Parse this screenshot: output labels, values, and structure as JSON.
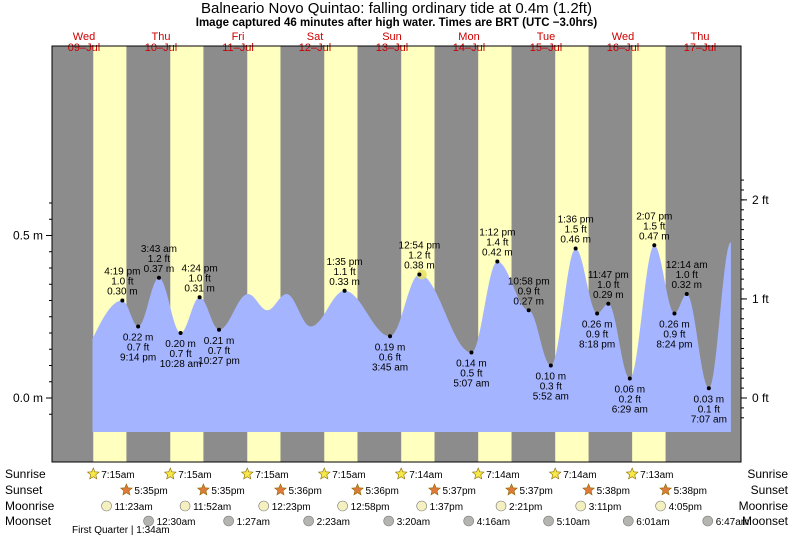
{
  "title": "Balneario Novo Quintao: falling  ordinary tide at 0.4m (1.2ft)",
  "subtitle": "Image captured 46 minutes after high water. Times are BRT (UTC −3.0hrs)",
  "colors": {
    "night": "#8c8c8c",
    "day": "#ffffc0",
    "tide_fill": "#a4b4ff",
    "grid": "#000000",
    "date_header": "#cc0000",
    "sun_icon": "#f7e84a",
    "sunset_icon": "#e07a3a",
    "moonrise_icon": "#f5f0c0",
    "moonset_icon": "#b4b4b0"
  },
  "days": [
    {
      "dow": "Wed",
      "date": "09–Jul"
    },
    {
      "dow": "Thu",
      "date": "10–Jul"
    },
    {
      "dow": "Fri",
      "date": "11–Jul"
    },
    {
      "dow": "Sat",
      "date": "12–Jul"
    },
    {
      "dow": "Sun",
      "date": "13–Jul"
    },
    {
      "dow": "Mon",
      "date": "14–Jul"
    },
    {
      "dow": "Tue",
      "date": "15–Jul"
    },
    {
      "dow": "Wed",
      "date": "16–Jul"
    },
    {
      "dow": "Thu",
      "date": "17–Jul"
    }
  ],
  "chart_data": {
    "type": "area",
    "y_axis_left": {
      "unit": "m",
      "ticks": [
        {
          "value": 0.0,
          "label": "0.0 m"
        },
        {
          "value": 0.5,
          "label": "0.5 m"
        }
      ]
    },
    "y_axis_right": {
      "unit": "ft",
      "ticks": [
        {
          "value": 0,
          "label": "0 ft"
        },
        {
          "value": 1,
          "label": "1 ft"
        },
        {
          "value": 2,
          "label": "2 ft"
        }
      ]
    },
    "ylim_m": [
      -0.08,
      0.63
    ],
    "x_range_hours_from_wed_09_jul_midnight": [
      -9,
      209
    ],
    "extremes": [
      {
        "time": "4:19 pm",
        "ft": "1.0 ft",
        "m": "0.30 m",
        "type": "high",
        "day": 0,
        "hours": 16.32,
        "value": 0.3
      },
      {
        "time": "9:14 pm",
        "ft": "0.7 ft",
        "m": "0.22 m",
        "type": "low",
        "day": 0,
        "hours": 21.23,
        "value": 0.22
      },
      {
        "time": "3:43 am",
        "ft": "1.2 ft",
        "m": "0.37 m",
        "type": "high",
        "day": 1,
        "hours": 27.72,
        "value": 0.37
      },
      {
        "time": "10:28 am",
        "ft": "0.7 ft",
        "m": "0.20 m",
        "type": "low",
        "day": 1,
        "hours": 34.47,
        "value": 0.2
      },
      {
        "time": "4:24 pm",
        "ft": "1.0 ft",
        "m": "0.31 m",
        "type": "high",
        "day": 1,
        "hours": 40.4,
        "value": 0.31
      },
      {
        "time": "10:27 pm",
        "ft": "0.7 ft",
        "m": "0.21 m",
        "type": "low",
        "day": 1,
        "hours": 46.45,
        "value": 0.21
      },
      {
        "time": "1:35 pm",
        "ft": "1.1 ft",
        "m": "0.33 m",
        "type": "high",
        "day": 3,
        "hours": 85.58,
        "value": 0.33
      },
      {
        "time": "3:45 am",
        "ft": "0.6 ft",
        "m": "0.19 m",
        "type": "low",
        "day": 4,
        "hours": 99.75,
        "value": 0.19
      },
      {
        "time": "12:54 pm",
        "ft": "1.2 ft",
        "m": "0.38 m",
        "type": "high",
        "day": 4,
        "hours": 108.9,
        "value": 0.38
      },
      {
        "time": "5:07 am",
        "ft": "0.5 ft",
        "m": "0.14 m",
        "type": "low",
        "day": 5,
        "hours": 125.12,
        "value": 0.14
      },
      {
        "time": "1:12 pm",
        "ft": "1.4 ft",
        "m": "0.42 m",
        "type": "high",
        "day": 5,
        "hours": 133.2,
        "value": 0.42
      },
      {
        "time": "10:58 pm",
        "ft": "0.9 ft",
        "m": "0.27 m",
        "type": "high",
        "day": 5,
        "hours": 142.97,
        "value": 0.27
      },
      {
        "time": "5:52 am",
        "ft": "0.3 ft",
        "m": "0.10 m",
        "type": "low",
        "day": 6,
        "hours": 149.87,
        "value": 0.1
      },
      {
        "time": "1:36 pm",
        "ft": "1.5 ft",
        "m": "0.46 m",
        "type": "high",
        "day": 6,
        "hours": 157.6,
        "value": 0.46
      },
      {
        "time": "8:18 pm",
        "ft": "0.9 ft",
        "m": "0.26 m",
        "type": "low",
        "day": 6,
        "hours": 164.3,
        "value": 0.26
      },
      {
        "time": "11:47 pm",
        "ft": "1.0 ft",
        "m": "0.29 m",
        "type": "high",
        "day": 6,
        "hours": 167.78,
        "value": 0.29
      },
      {
        "time": "6:29 am",
        "ft": "0.2 ft",
        "m": "0.06 m",
        "type": "low",
        "day": 7,
        "hours": 174.48,
        "value": 0.06
      },
      {
        "time": "2:07 pm",
        "ft": "1.5 ft",
        "m": "0.47 m",
        "type": "high",
        "day": 7,
        "hours": 182.12,
        "value": 0.47
      },
      {
        "time": "8:24 pm",
        "ft": "0.9 ft",
        "m": "0.26 m",
        "type": "low",
        "day": 7,
        "hours": 188.4,
        "value": 0.26
      },
      {
        "time": "12:14 am",
        "ft": "1.0 ft",
        "m": "0.32 m",
        "type": "high",
        "day": 8,
        "hours": 192.23,
        "value": 0.32
      },
      {
        "time": "7:07 am",
        "ft": "0.1 ft",
        "m": "0.03 m",
        "type": "low",
        "day": 8,
        "hours": 199.12,
        "value": 0.03
      }
    ],
    "unlabeled_curve_points": [
      {
        "hours": -3,
        "value": 0.05
      },
      {
        "hours": 55.5,
        "value": 0.32
      },
      {
        "hours": 61.5,
        "value": 0.27
      },
      {
        "hours": 67.5,
        "value": 0.32
      },
      {
        "hours": 75.0,
        "value": 0.22
      },
      {
        "hours": 206.0,
        "value": 0.48
      }
    ],
    "current_marker": {
      "hours": 109.67,
      "value": 0.38
    }
  },
  "sunrise": {
    "label": "Sunrise",
    "times": [
      "7:15am",
      "7:15am",
      "7:15am",
      "7:15am",
      "7:14am",
      "7:14am",
      "7:14am",
      "7:13am"
    ]
  },
  "sunset": {
    "label": "Sunset",
    "times": [
      "5:35pm",
      "5:35pm",
      "5:36pm",
      "5:36pm",
      "5:37pm",
      "5:37pm",
      "5:38pm",
      "5:38pm"
    ]
  },
  "moonrise": {
    "label": "Moonrise",
    "times": [
      "11:23am",
      "11:52am",
      "12:23pm",
      "12:58pm",
      "1:37pm",
      "2:21pm",
      "3:11pm",
      "4:05pm"
    ]
  },
  "moonset": {
    "label": "Moonset",
    "times": [
      "12:30am",
      "1:27am",
      "2:23am",
      "3:20am",
      "4:16am",
      "5:10am",
      "6:01am",
      "6:47am"
    ]
  },
  "moon_phase_note": "First Quarter | 1:34am"
}
